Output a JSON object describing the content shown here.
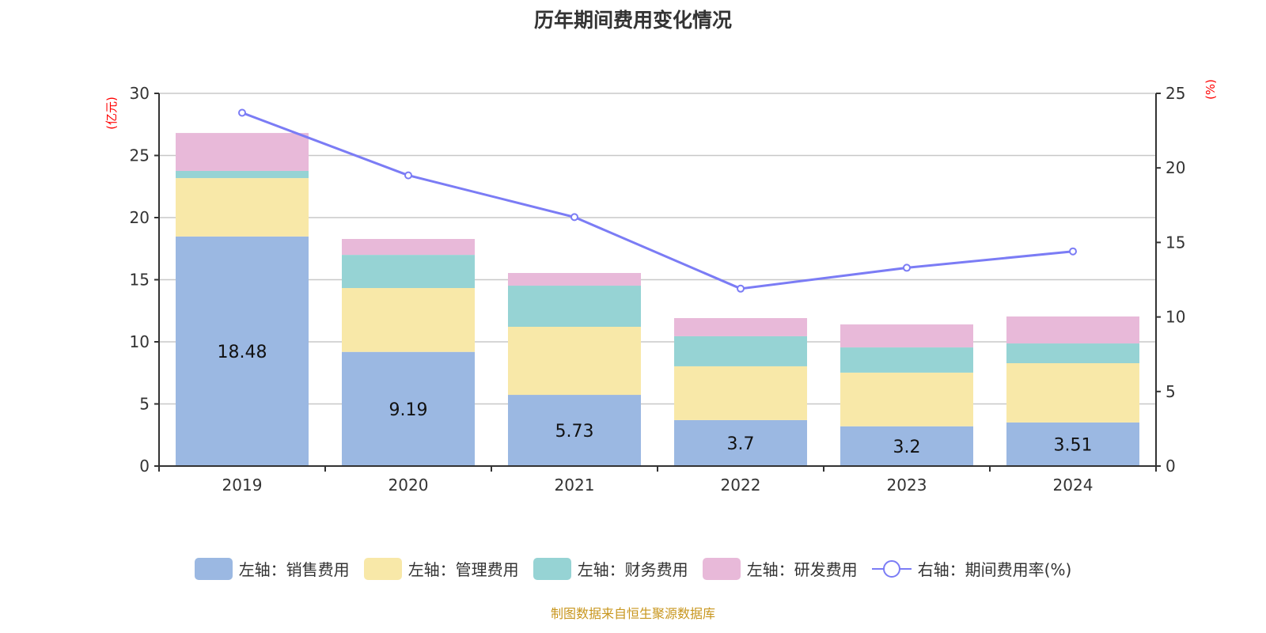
{
  "chart_data": {
    "type": "bar",
    "stacked": true,
    "title": "历年期间费用变化情况",
    "categories": [
      "2019",
      "2020",
      "2021",
      "2022",
      "2023",
      "2024"
    ],
    "left_axis": {
      "label": "(亿元)",
      "range": [
        0,
        30
      ],
      "ticks": [
        0,
        5,
        10,
        15,
        20,
        25,
        30
      ]
    },
    "right_axis": {
      "label": "(%)",
      "range": [
        0,
        25
      ],
      "ticks": [
        0,
        5,
        10,
        15,
        20,
        25
      ]
    },
    "grid": true,
    "legend_position": "bottom",
    "series": [
      {
        "name": "左轴：销售费用",
        "axis": "left",
        "type": "bar",
        "color": "#9bb8e2",
        "values": [
          18.48,
          9.19,
          5.73,
          3.7,
          3.2,
          3.51
        ],
        "labels_shown": true
      },
      {
        "name": "左轴：管理费用",
        "axis": "left",
        "type": "bar",
        "color": "#f8e8a8",
        "values": [
          4.7,
          5.14,
          5.48,
          4.33,
          4.32,
          4.77
        ]
      },
      {
        "name": "左轴：财务费用",
        "axis": "left",
        "type": "bar",
        "color": "#96d3d4",
        "values": [
          0.58,
          2.67,
          3.31,
          2.42,
          2.03,
          1.59
        ]
      },
      {
        "name": "左轴：研发费用",
        "axis": "left",
        "type": "bar",
        "color": "#e8b9d9",
        "values": [
          3.05,
          1.28,
          1.02,
          1.46,
          1.85,
          2.17
        ]
      },
      {
        "name": "右轴：期间费用率(%)",
        "axis": "right",
        "type": "line",
        "color": "#7b7cf5",
        "values": [
          23.7,
          19.5,
          16.7,
          11.9,
          13.3,
          14.4
        ]
      }
    ],
    "source": "制图数据来自恒生聚源数据库"
  }
}
